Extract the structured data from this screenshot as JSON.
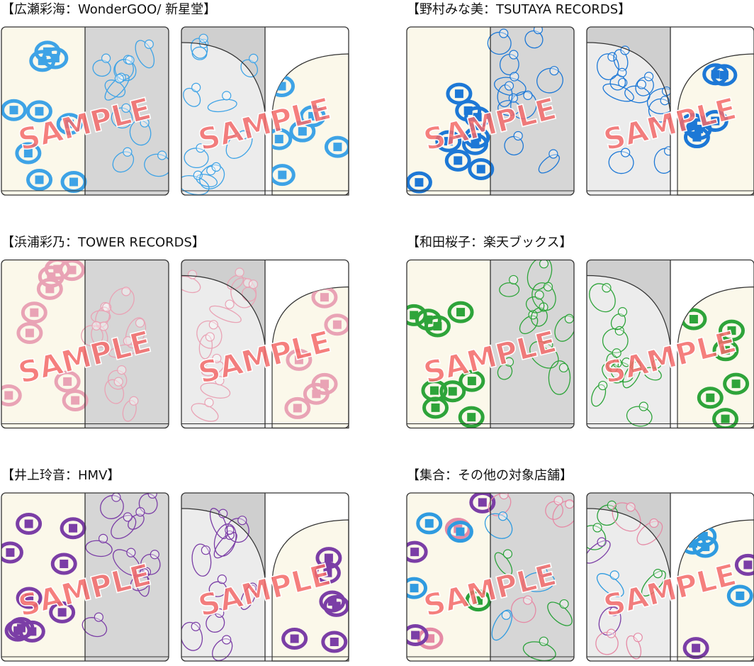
{
  "panels": [
    {
      "title": "【広瀬彩海：WonderGOO/ 新星堂】",
      "colors": [
        "#3ea3e6"
      ]
    },
    {
      "title": "【野村みな美：TSUTAYA RECORDS】",
      "colors": [
        "#1d78d6"
      ]
    },
    {
      "title": "【浜浦彩乃：TOWER RECORDS】",
      "colors": [
        "#e9a3b5"
      ]
    },
    {
      "title": "【和田桜子：楽天ブックス】",
      "colors": [
        "#2ea43a"
      ]
    },
    {
      "title": "【井上玲音：HMV】",
      "colors": [
        "#7b3ea6"
      ]
    },
    {
      "title": "【集合：その他の対象店舗】",
      "colors": [
        "#2f9be0",
        "#2aa13a",
        "#7b3ea6",
        "#e58aa5"
      ]
    }
  ],
  "watermark": "SAMPLE"
}
